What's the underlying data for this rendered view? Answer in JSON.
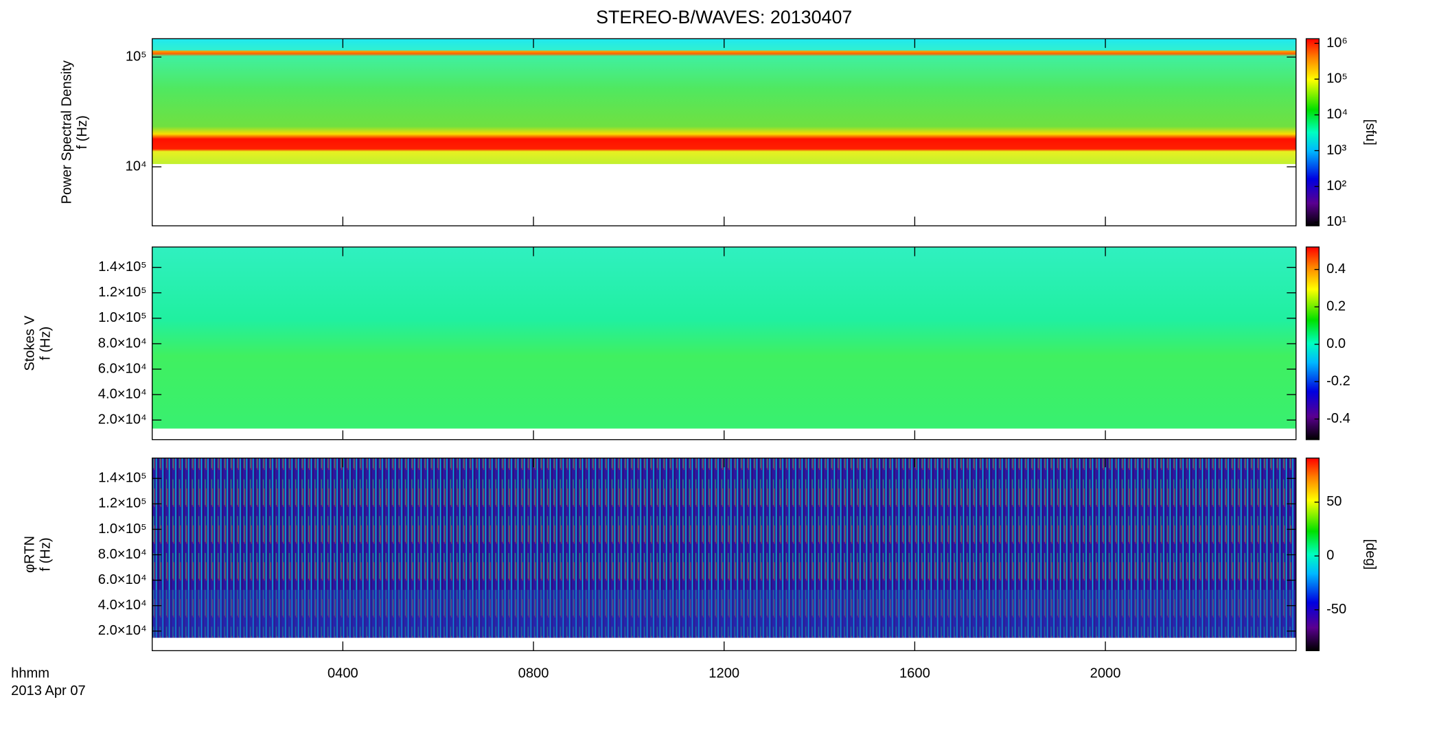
{
  "chart_data": [
    {
      "type": "heatmap",
      "title": "STEREO-B/WAVES: 20130407",
      "ylabel": [
        "Power Spectral Density",
        "f (Hz)"
      ],
      "ylog": true,
      "ylim": [
        2900,
        147000
      ],
      "yticks": [
        {
          "value": 10000,
          "label": "10⁴"
        },
        {
          "value": 100000,
          "label": "10⁵"
        }
      ],
      "xlim": [
        0,
        24
      ],
      "xticks": [
        {
          "value": 4,
          "label": "0400"
        },
        {
          "value": 8,
          "label": "0800"
        },
        {
          "value": 12,
          "label": "1200"
        },
        {
          "value": 16,
          "label": "1600"
        },
        {
          "value": 20,
          "label": "2000"
        }
      ],
      "colorbar": {
        "label": "[sfu]",
        "log": true,
        "lim": [
          7.9,
          1350000
        ],
        "ticks": [
          {
            "value": 10,
            "label": "10¹"
          },
          {
            "value": 100,
            "label": "10²"
          },
          {
            "value": 1000,
            "label": "10³"
          },
          {
            "value": 10000,
            "label": "10⁴"
          },
          {
            "value": 100000,
            "label": "10⁵"
          },
          {
            "value": 1000000,
            "label": "10⁶"
          }
        ]
      }
    },
    {
      "type": "heatmap",
      "ylabel": [
        "Stokes V",
        "f (Hz)"
      ],
      "ylog": false,
      "ylim": [
        4600,
        156000
      ],
      "yticks": [
        {
          "value": 20000,
          "label": "2.0×10⁴"
        },
        {
          "value": 40000,
          "label": "4.0×10⁴"
        },
        {
          "value": 60000,
          "label": "6.0×10⁴"
        },
        {
          "value": 80000,
          "label": "8.0×10⁴"
        },
        {
          "value": 100000,
          "label": "1.0×10⁵"
        },
        {
          "value": 120000,
          "label": "1.2×10⁵"
        },
        {
          "value": 140000,
          "label": "1.4×10⁵"
        }
      ],
      "xlim": [
        0,
        24
      ],
      "xticks": [
        {
          "value": 4,
          "label": "0400"
        },
        {
          "value": 8,
          "label": "0800"
        },
        {
          "value": 12,
          "label": "1200"
        },
        {
          "value": 16,
          "label": "1600"
        },
        {
          "value": 20,
          "label": "2000"
        }
      ],
      "colorbar": {
        "log": false,
        "lim": [
          -0.51,
          0.52
        ],
        "ticks": [
          {
            "value": -0.4,
            "label": "-0.4"
          },
          {
            "value": -0.2,
            "label": "-0.2"
          },
          {
            "value": 0,
            "label": "0.0"
          },
          0.2,
          0.4
        ]
      }
    },
    {
      "type": "heatmap",
      "ylabel": [
        "φRTN",
        "f (Hz)"
      ],
      "ylog": false,
      "ylim": [
        4600,
        156000
      ],
      "yticks": [
        {
          "value": 20000,
          "label": "2.0×10⁴"
        },
        {
          "value": 40000,
          "label": "4.0×10⁴"
        },
        {
          "value": 60000,
          "label": "6.0×10⁴"
        },
        {
          "value": 80000,
          "label": "8.0×10⁴"
        },
        {
          "value": 100000,
          "label": "1.0×10⁵"
        },
        {
          "value": 120000,
          "label": "1.2×10⁵"
        },
        {
          "value": 140000,
          "label": "1.4×10⁵"
        }
      ],
      "xlim": [
        0,
        24
      ],
      "xticks": [
        {
          "value": 4,
          "label": "0400"
        },
        {
          "value": 8,
          "label": "0800"
        },
        {
          "value": 12,
          "label": "1200"
        },
        {
          "value": 16,
          "label": "1600"
        },
        {
          "value": 20,
          "label": "2000"
        }
      ],
      "xlabel": "hhmm",
      "date": "2013 Apr 07",
      "colorbar": {
        "label": "[deg]",
        "log": false,
        "lim": [
          -88,
          91
        ],
        "ticks": [
          -50,
          0,
          50
        ]
      }
    }
  ]
}
